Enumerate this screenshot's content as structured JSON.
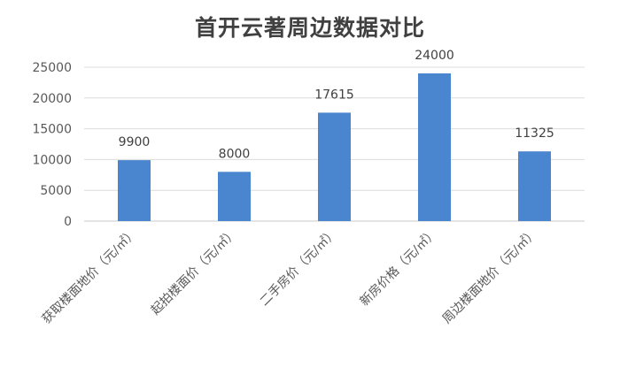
{
  "chart_data": {
    "type": "bar",
    "title": "首开云著周边数据对比",
    "categories": [
      "获取楼面地价（元/㎡）",
      "起拍楼面价（元/㎡）",
      "二手房价（元/㎡）",
      "新房价格（元/㎡）",
      "周边楼面地价（元/㎡）"
    ],
    "values": [
      9900,
      8000,
      17615,
      24000,
      11325
    ],
    "data_labels": [
      "9900",
      "8000",
      "17615",
      "24000",
      "11325"
    ],
    "ylim": [
      0,
      25000
    ],
    "yticks": [
      "0",
      "5000",
      "10000",
      "15000",
      "20000",
      "25000"
    ],
    "grid": true,
    "legend": "none",
    "bar_color": "#4a86d0"
  }
}
